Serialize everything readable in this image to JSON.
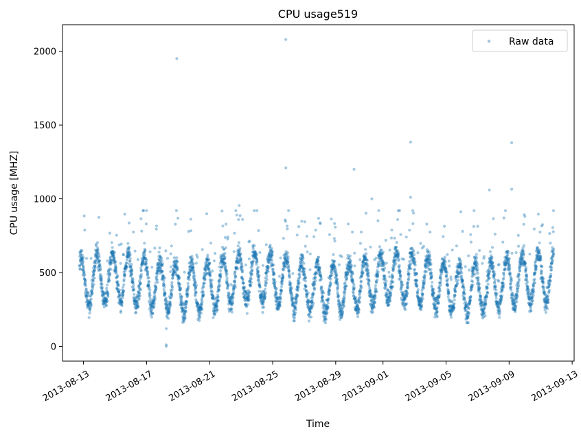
{
  "chart_data": {
    "type": "scatter",
    "title": "CPU usage519",
    "xlabel": "Time",
    "ylabel": "CPU usage [MHZ]",
    "x_type": "date",
    "xlim": [
      "2013-08-11T16:00",
      "2013-09-13T03:00"
    ],
    "ylim": [
      -100,
      2180
    ],
    "x_ticks": [
      "2013-08-13",
      "2013-08-17",
      "2013-08-21",
      "2013-08-25",
      "2013-08-29",
      "2013-09-01",
      "2013-09-05",
      "2013-09-09",
      "2013-09-13"
    ],
    "y_ticks": [
      0,
      500,
      1000,
      1500,
      2000
    ],
    "grid": false,
    "legend": {
      "position": "top-right",
      "entries": [
        "Raw data"
      ]
    },
    "series": [
      {
        "name": "Raw data",
        "color": "#1f77b4",
        "marker": "circle",
        "alpha": 0.4,
        "data_range": {
          "start": "2013-08-12T18:00",
          "end": "2013-09-11T20:00"
        },
        "typical_range": [
          180,
          920
        ],
        "daily_cycle_mean": 430,
        "outliers": [
          {
            "x": "2013-08-18T22:00",
            "y": 1950
          },
          {
            "x": "2013-08-25T20:00",
            "y": 2080
          },
          {
            "x": "2013-08-25T20:00",
            "y": 1210
          },
          {
            "x": "2013-08-30T04:00",
            "y": 1200
          },
          {
            "x": "2013-08-31T07:00",
            "y": 1000
          },
          {
            "x": "2013-09-02T18:00",
            "y": 1385
          },
          {
            "x": "2013-09-02T18:00",
            "y": 1010
          },
          {
            "x": "2013-09-07T18:00",
            "y": 1060
          },
          {
            "x": "2013-09-09T04:00",
            "y": 1380
          },
          {
            "x": "2013-09-09T04:00",
            "y": 1065
          },
          {
            "x": "2013-08-18T06:00",
            "y": 10
          },
          {
            "x": "2013-08-18T06:00",
            "y": 0
          },
          {
            "x": "2013-08-18T06:00",
            "y": 120
          },
          {
            "x": "2013-08-22T21:00",
            "y": 955
          }
        ]
      }
    ]
  }
}
